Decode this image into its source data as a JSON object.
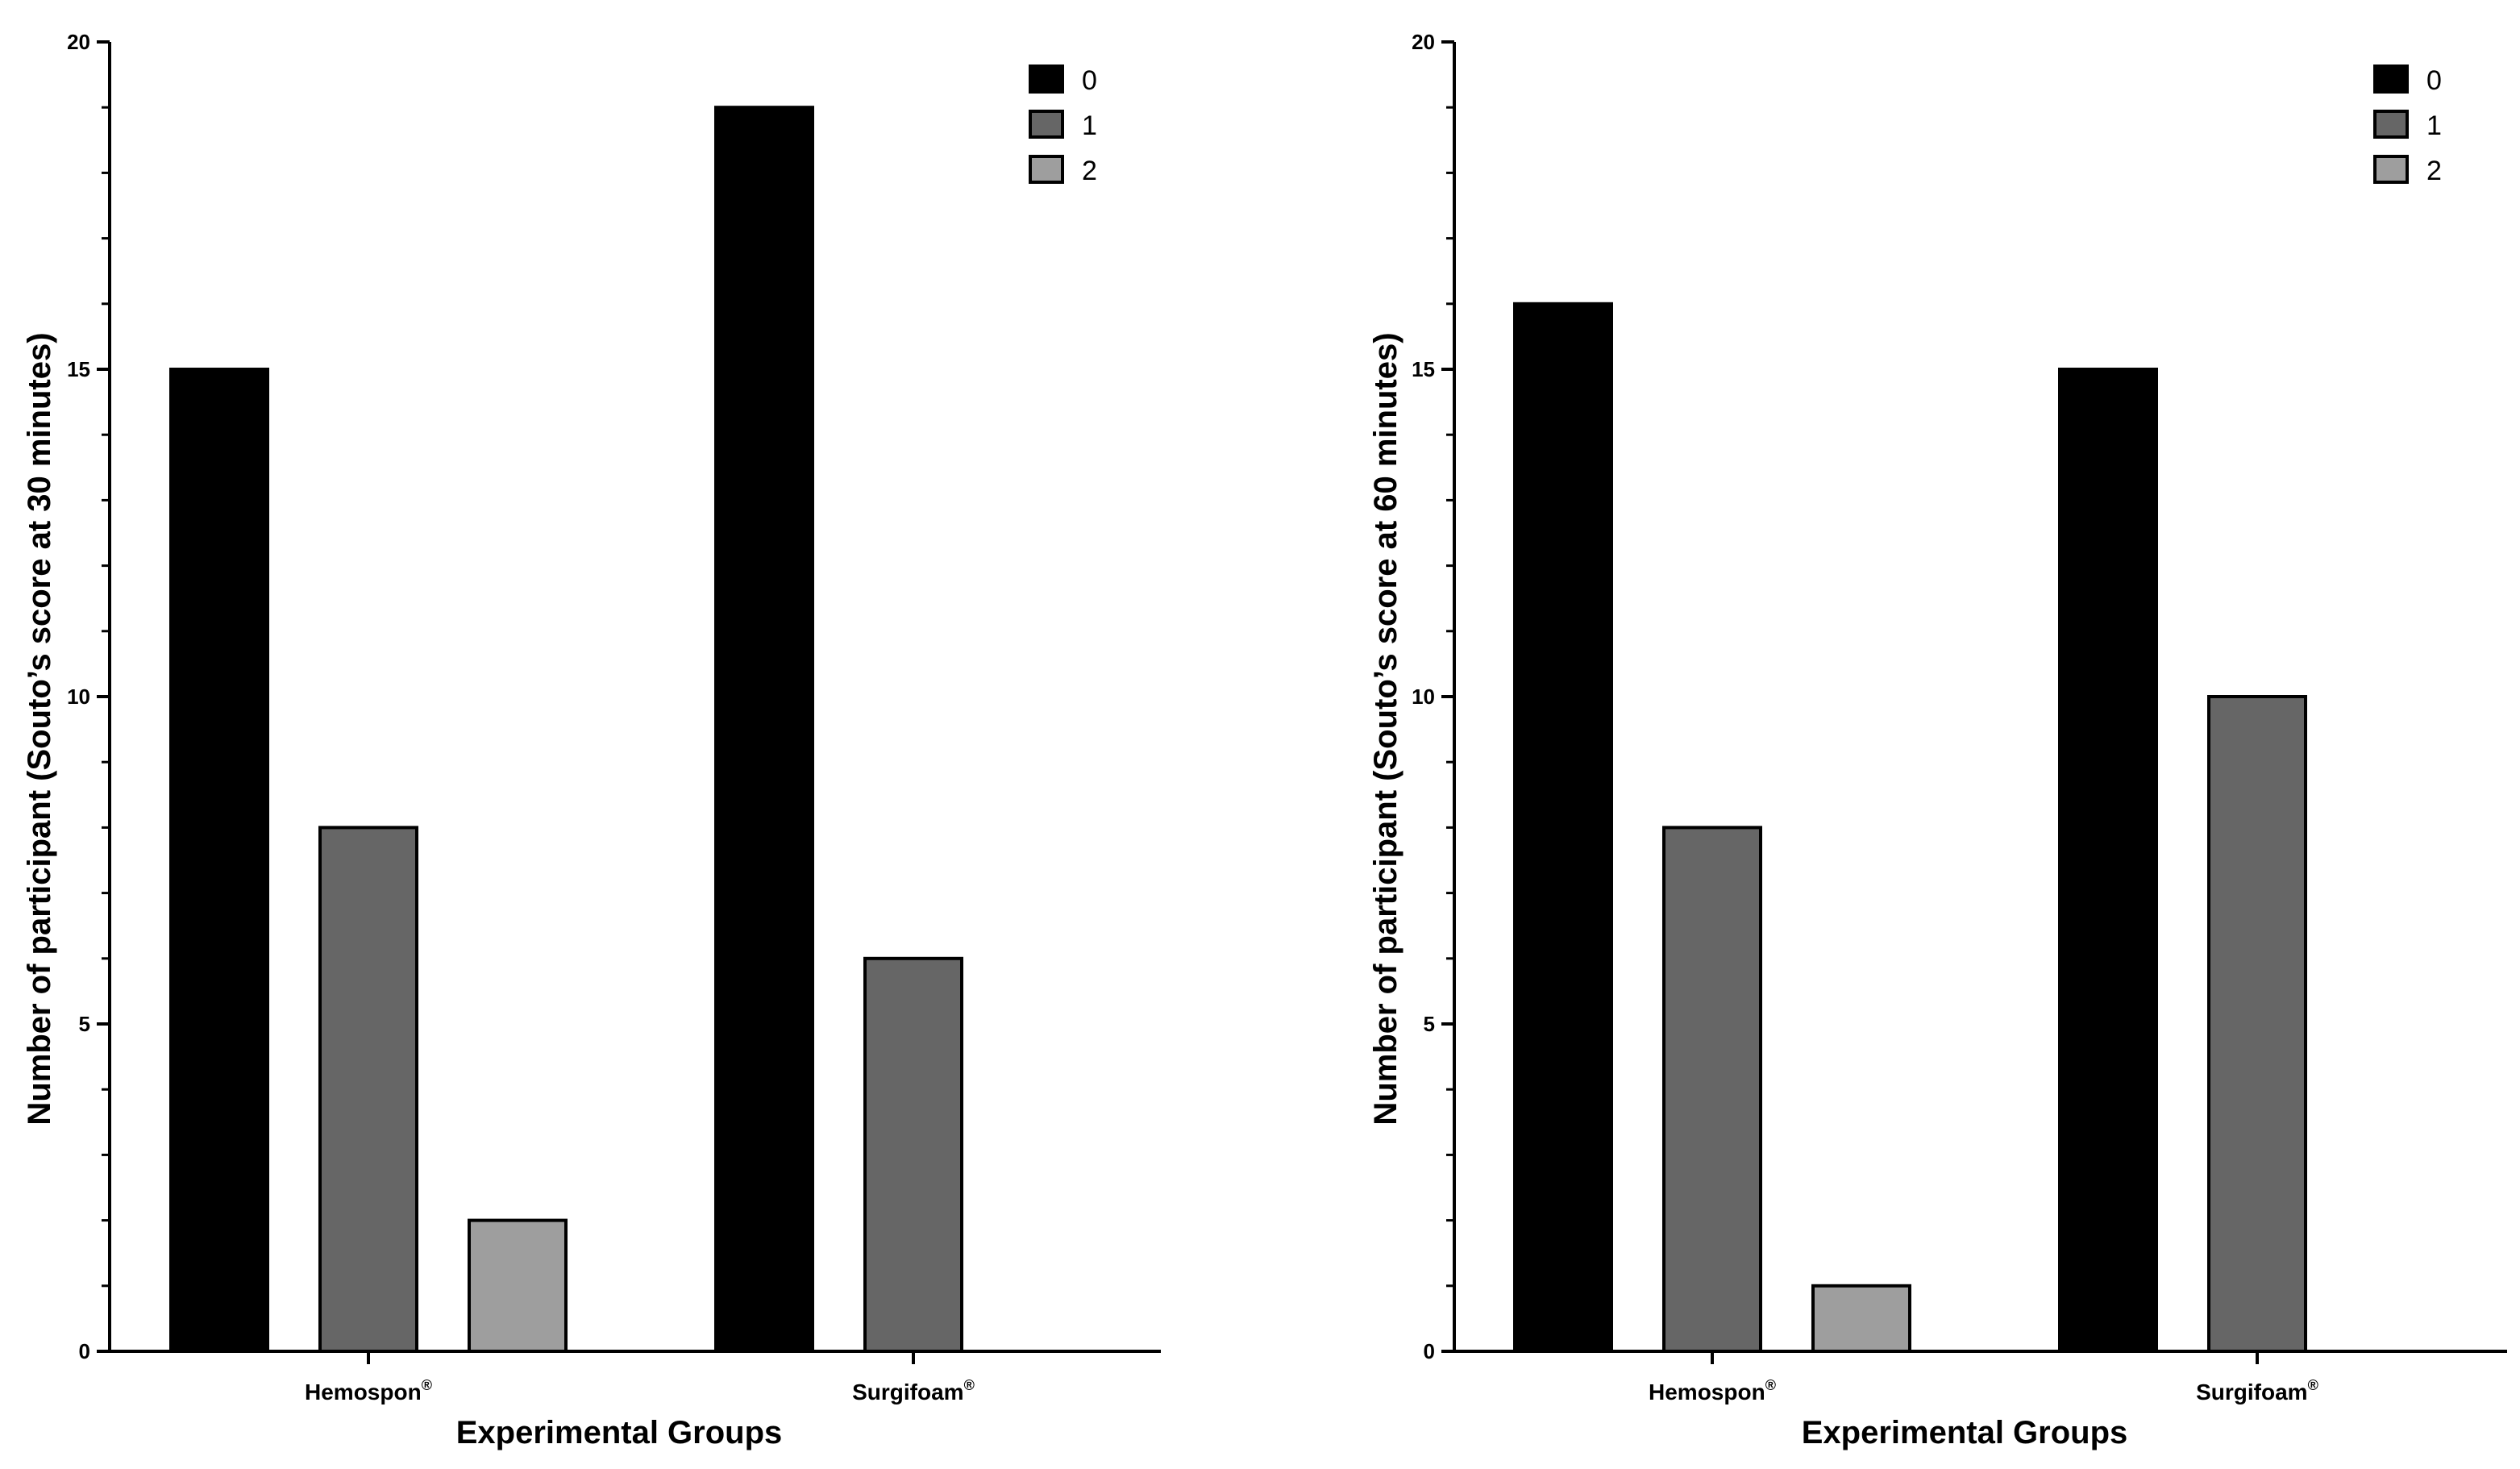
{
  "chart_data": [
    {
      "type": "bar",
      "title": "",
      "xlabel": "Experimental Groups",
      "ylabel": "Number of participant (Souto’s score at 30 minutes)",
      "categories": [
        "Hemospon",
        "Surgifoam"
      ],
      "category_superscript": "®",
      "ylim": [
        0,
        20
      ],
      "yticks": [
        "0",
        "5",
        "10",
        "15",
        "20"
      ],
      "series": [
        {
          "name": "0",
          "color": "#000000",
          "values": [
            15,
            19
          ]
        },
        {
          "name": "1",
          "color": "#666666",
          "values": [
            8,
            6
          ]
        },
        {
          "name": "2",
          "color": "#9e9e9e",
          "values": [
            2,
            0
          ]
        }
      ],
      "legend": "top-right",
      "grid": false
    },
    {
      "type": "bar",
      "title": "",
      "xlabel": "Experimental Groups",
      "ylabel": "Number of participant (Souto’s score at 60 minutes)",
      "categories": [
        "Hemospon",
        "Surgifoam"
      ],
      "category_superscript": "®",
      "ylim": [
        0,
        20
      ],
      "yticks": [
        "0",
        "5",
        "10",
        "15",
        "20"
      ],
      "series": [
        {
          "name": "0",
          "color": "#000000",
          "values": [
            16,
            15
          ]
        },
        {
          "name": "1",
          "color": "#666666",
          "values": [
            8,
            10
          ]
        },
        {
          "name": "2",
          "color": "#9e9e9e",
          "values": [
            1,
            0
          ]
        }
      ],
      "legend": "top-right",
      "grid": false
    }
  ]
}
